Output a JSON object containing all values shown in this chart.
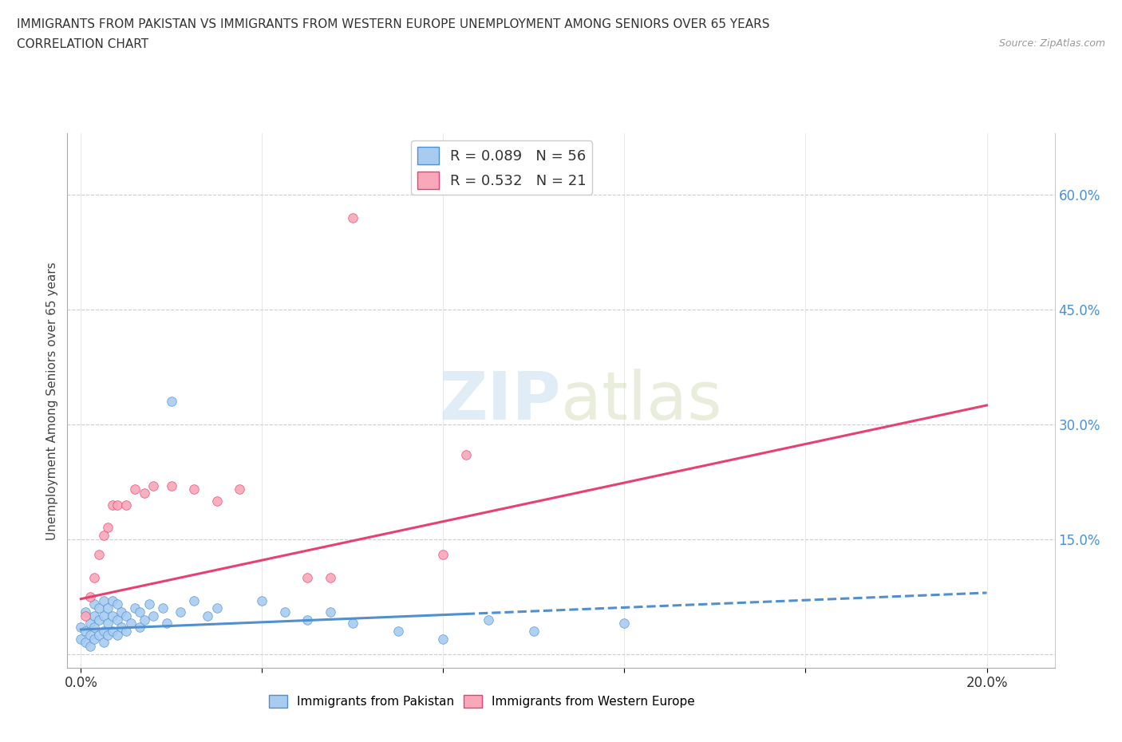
{
  "title_line1": "IMMIGRANTS FROM PAKISTAN VS IMMIGRANTS FROM WESTERN EUROPE UNEMPLOYMENT AMONG SENIORS OVER 65 YEARS",
  "title_line2": "CORRELATION CHART",
  "source": "Source: ZipAtlas.com",
  "ylabel": "Unemployment Among Seniors over 65 years",
  "x_ticks": [
    0.0,
    0.04,
    0.08,
    0.12,
    0.16,
    0.2
  ],
  "y_ticks": [
    0.0,
    0.15,
    0.3,
    0.45,
    0.6
  ],
  "xlim": [
    -0.003,
    0.215
  ],
  "ylim": [
    -0.018,
    0.68
  ],
  "r_pakistan": 0.089,
  "n_pakistan": 56,
  "r_western_europe": 0.532,
  "n_western_europe": 21,
  "color_pakistan": "#a8ccf0",
  "color_western_europe": "#f8a8b8",
  "color_trendline_pakistan": "#5090d0",
  "color_trendline_western_europe": "#e84070",
  "watermark_zip": "ZIP",
  "watermark_atlas": "atlas",
  "pakistan_x": [
    0.0,
    0.0,
    0.001,
    0.001,
    0.001,
    0.002,
    0.002,
    0.002,
    0.003,
    0.003,
    0.003,
    0.003,
    0.004,
    0.004,
    0.004,
    0.005,
    0.005,
    0.005,
    0.005,
    0.006,
    0.006,
    0.006,
    0.007,
    0.007,
    0.007,
    0.008,
    0.008,
    0.008,
    0.009,
    0.009,
    0.01,
    0.01,
    0.011,
    0.012,
    0.013,
    0.013,
    0.014,
    0.015,
    0.016,
    0.018,
    0.019,
    0.02,
    0.022,
    0.025,
    0.028,
    0.03,
    0.04,
    0.045,
    0.05,
    0.055,
    0.06,
    0.07,
    0.08,
    0.09,
    0.1,
    0.12
  ],
  "pakistan_y": [
    0.02,
    0.035,
    0.015,
    0.03,
    0.055,
    0.025,
    0.04,
    0.01,
    0.02,
    0.035,
    0.05,
    0.065,
    0.025,
    0.045,
    0.06,
    0.015,
    0.03,
    0.05,
    0.07,
    0.025,
    0.04,
    0.06,
    0.03,
    0.05,
    0.07,
    0.025,
    0.045,
    0.065,
    0.035,
    0.055,
    0.03,
    0.05,
    0.04,
    0.06,
    0.035,
    0.055,
    0.045,
    0.065,
    0.05,
    0.06,
    0.04,
    0.33,
    0.055,
    0.07,
    0.05,
    0.06,
    0.07,
    0.055,
    0.045,
    0.055,
    0.04,
    0.03,
    0.02,
    0.045,
    0.03,
    0.04
  ],
  "western_europe_x": [
    0.001,
    0.002,
    0.003,
    0.004,
    0.005,
    0.006,
    0.007,
    0.008,
    0.01,
    0.012,
    0.014,
    0.016,
    0.02,
    0.025,
    0.03,
    0.035,
    0.05,
    0.055,
    0.06,
    0.08,
    0.085
  ],
  "western_europe_y": [
    0.05,
    0.075,
    0.1,
    0.13,
    0.155,
    0.165,
    0.195,
    0.195,
    0.195,
    0.215,
    0.21,
    0.22,
    0.22,
    0.215,
    0.2,
    0.215,
    0.1,
    0.1,
    0.57,
    0.13,
    0.26
  ],
  "pak_trend_x0": 0.0,
  "pak_trend_x1": 0.2,
  "pak_trend_y0": 0.032,
  "pak_trend_y1": 0.08,
  "pak_trend_solid_x1": 0.085,
  "we_trend_x0": 0.0,
  "we_trend_x1": 0.2,
  "we_trend_y0": 0.072,
  "we_trend_y1": 0.325
}
